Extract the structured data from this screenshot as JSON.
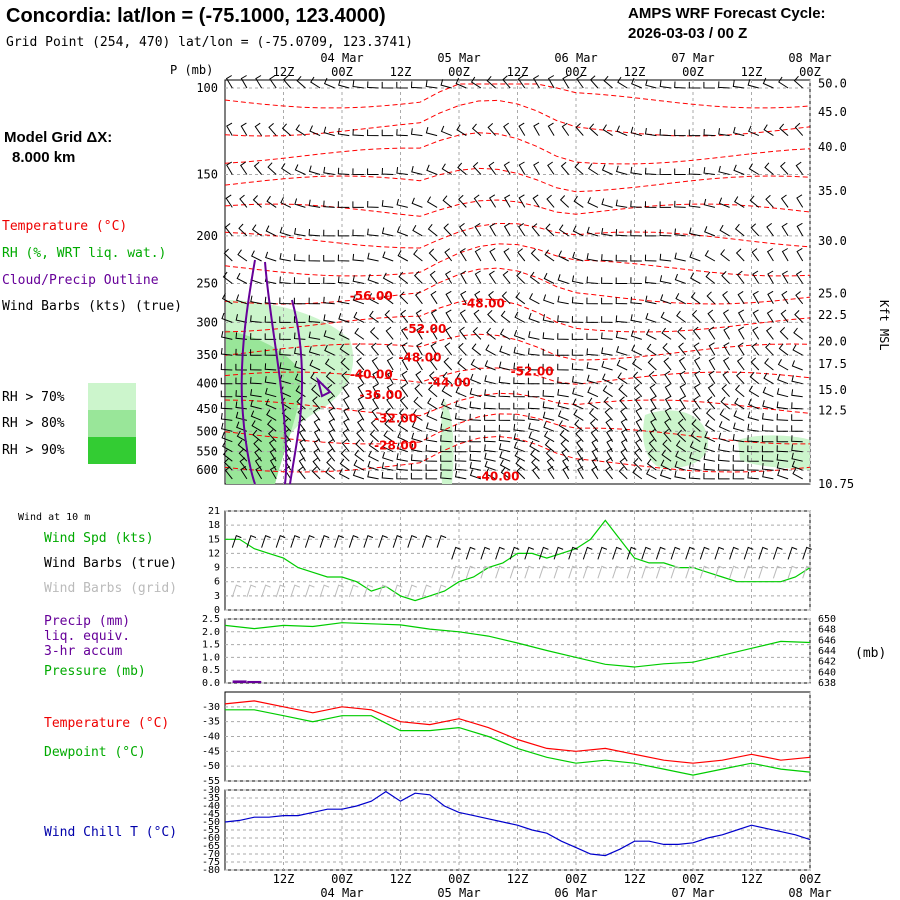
{
  "header": {
    "title": "Concordia:  lat/lon = (-75.1000, 123.4000)",
    "grid_point": "Grid Point (254, 470) lat/lon = (-75.0709, 123.3741)",
    "cycle_label": "AMPS WRF Forecast Cycle:",
    "cycle_value": "2026-03-03 / 00  Z",
    "model_grid_label": "Model Grid ΔX:",
    "model_grid_value": "8.000 km"
  },
  "colors": {
    "temperature": "#ff0000",
    "rh_line": "#00cc00",
    "cloud": "#660099",
    "wind_chill": "#0000cc",
    "rh70": "#ccf5cc",
    "rh80": "#99e699",
    "rh90": "#33cc33",
    "grid": "#aaaaaa"
  },
  "time_axis": {
    "ticks": [
      "12Z",
      "00Z",
      "12Z",
      "00Z",
      "12Z",
      "00Z",
      "12Z",
      "00Z",
      "12Z",
      "00Z"
    ],
    "dates": [
      "04 Mar",
      "05 Mar",
      "06 Mar",
      "07 Mar",
      "08 Mar"
    ],
    "hours_span": [
      0,
      120
    ]
  },
  "chart_data": [
    {
      "type": "heatmap",
      "title": "Cross-section",
      "ylabel": "P (mb)",
      "y2label": "Kft MSL",
      "pressure_ticks": [
        "100",
        "150",
        "200",
        "250",
        "300",
        "350",
        "400",
        "450",
        "500",
        "550",
        "600"
      ],
      "kft_ticks": [
        "50.0",
        "45.0",
        "40.0",
        "35.0",
        "30.0",
        "25.0",
        "22.5",
        "20.0",
        "17.5",
        "15.0",
        "12.5",
        "10.75"
      ],
      "legend": {
        "temperature": "Temperature (°C)",
        "rh": "RH (%, WRT liq. wat.)",
        "cloud": "Cloud/Precip Outline",
        "barbs": "Wind Barbs (kts) (true)",
        "rh70": "RH > 70%",
        "rh80": "RH > 80%",
        "rh90": "RH > 90%"
      },
      "isotherm_labels": [
        {
          "text": "-56.00",
          "hour": 30,
          "p": 270
        },
        {
          "text": "-48.00",
          "hour": 53,
          "p": 280
        },
        {
          "text": "-52.00",
          "hour": 41,
          "p": 315
        },
        {
          "text": "-48.00",
          "hour": 40,
          "p": 360
        },
        {
          "text": "-52.00",
          "hour": 63,
          "p": 385
        },
        {
          "text": "-40.00",
          "hour": 30,
          "p": 390
        },
        {
          "text": "-44.00",
          "hour": 46,
          "p": 405
        },
        {
          "text": "-36.00",
          "hour": 32,
          "p": 430
        },
        {
          "text": "-32.00",
          "hour": 35,
          "p": 480
        },
        {
          "text": "-28.00",
          "hour": 35,
          "p": 545
        },
        {
          "text": "-40.00",
          "hour": 56,
          "p": 630
        }
      ]
    },
    {
      "type": "line",
      "title": "Wind at 10 m",
      "legend": [
        "Wind Spd (kts)",
        "Wind Barbs (true)",
        "Wind Barbs (grid)"
      ],
      "yticks": [
        "21",
        "18",
        "15",
        "12",
        "9",
        "6",
        "3",
        "0"
      ],
      "ylim": [
        0,
        21
      ],
      "series": [
        {
          "name": "Wind Spd (kts)",
          "x": [
            0,
            3,
            6,
            9,
            12,
            15,
            18,
            21,
            24,
            27,
            30,
            33,
            36,
            39,
            42,
            45,
            48,
            51,
            54,
            57,
            60,
            63,
            66,
            69,
            72,
            75,
            78,
            81,
            84,
            87,
            90,
            93,
            96,
            99,
            102,
            105,
            108,
            111,
            114,
            117,
            120
          ],
          "values": [
            15,
            15,
            13,
            12,
            11,
            9,
            8,
            7,
            7,
            6,
            4,
            5,
            3,
            2,
            3,
            4,
            6,
            7,
            9,
            10,
            12,
            12,
            11,
            12,
            13,
            15,
            19,
            15,
            11,
            10,
            10,
            9,
            9,
            8,
            7,
            6,
            6,
            6,
            6,
            7,
            9
          ]
        }
      ]
    },
    {
      "type": "line",
      "title": "Precip / Pressure",
      "legend": [
        "Precip (mm)",
        "liq. equiv.",
        "3-hr accum",
        "Pressure (mb)"
      ],
      "yticks": [
        "2.5",
        "2.0",
        "1.5",
        "1.0",
        "0.5",
        "0.0"
      ],
      "y2ticks": [
        "650",
        "648",
        "646",
        "644",
        "642",
        "640",
        "638"
      ],
      "y2unit": "(mb)",
      "ylim": [
        0,
        2.5
      ],
      "y2lim": [
        638,
        650
      ],
      "precip": {
        "x": [
          3,
          6
        ],
        "values": [
          0.1,
          0.08
        ]
      },
      "series": [
        {
          "name": "Pressure (mb)",
          "x": [
            0,
            6,
            12,
            18,
            24,
            30,
            36,
            42,
            48,
            54,
            60,
            66,
            72,
            78,
            84,
            90,
            96,
            102,
            108,
            114,
            120
          ],
          "values": [
            648.8,
            648.2,
            648.8,
            648.6,
            649.3,
            649.1,
            648.9,
            648.1,
            647.6,
            646.8,
            645.5,
            644.1,
            642.8,
            641.5,
            641.0,
            641.6,
            641.9,
            643.2,
            644.5,
            645.8,
            645.6
          ]
        }
      ]
    },
    {
      "type": "line",
      "title": "Temperature / Dewpoint",
      "legend": [
        "Temperature (°C)",
        "Dewpoint (°C)"
      ],
      "yticks": [
        "-30",
        "-35",
        "-40",
        "-45",
        "-50",
        "-55"
      ],
      "ylim": [
        -55,
        -25
      ],
      "series": [
        {
          "name": "Temperature (°C)",
          "x": [
            0,
            6,
            12,
            18,
            24,
            30,
            36,
            42,
            48,
            54,
            60,
            66,
            72,
            78,
            84,
            90,
            96,
            102,
            108,
            114,
            120
          ],
          "values": [
            -29,
            -28,
            -30,
            -32,
            -30,
            -31,
            -35,
            -36,
            -34,
            -37,
            -41,
            -44,
            -45,
            -44,
            -46,
            -48,
            -49,
            -48,
            -46,
            -48,
            -47
          ]
        },
        {
          "name": "Dewpoint (°C)",
          "x": [
            0,
            6,
            12,
            18,
            24,
            30,
            36,
            42,
            48,
            54,
            60,
            66,
            72,
            78,
            84,
            90,
            96,
            102,
            108,
            114,
            120
          ],
          "values": [
            -31,
            -31,
            -33,
            -35,
            -33,
            -33,
            -38,
            -38,
            -37,
            -40,
            -44,
            -47,
            -49,
            -48,
            -49,
            -51,
            -53,
            -51,
            -49,
            -51,
            -52
          ]
        }
      ]
    },
    {
      "type": "line",
      "title": "Wind Chill",
      "legend": [
        "Wind Chill T (°C)"
      ],
      "yticks": [
        "-30",
        "-35",
        "-40",
        "-45",
        "-50",
        "-55",
        "-60",
        "-65",
        "-70",
        "-75",
        "-80"
      ],
      "ylim": [
        -80,
        -30
      ],
      "series": [
        {
          "name": "Wind Chill T (°C)",
          "x": [
            0,
            3,
            6,
            9,
            12,
            15,
            18,
            21,
            24,
            27,
            30,
            33,
            36,
            39,
            42,
            45,
            48,
            51,
            54,
            57,
            60,
            63,
            66,
            69,
            72,
            75,
            78,
            81,
            84,
            87,
            90,
            93,
            96,
            99,
            102,
            105,
            108,
            111,
            114,
            117,
            120
          ],
          "values": [
            -50,
            -49,
            -47,
            -47,
            -46,
            -46,
            -44,
            -42,
            -42,
            -40,
            -37,
            -31,
            -37,
            -32,
            -33,
            -40,
            -44,
            -46,
            -48,
            -50,
            -52,
            -55,
            -57,
            -62,
            -66,
            -70,
            -71,
            -67,
            -62,
            -62,
            -64,
            -64,
            -63,
            -60,
            -58,
            -55,
            -52,
            -54,
            -56,
            -58,
            -61
          ]
        }
      ]
    }
  ],
  "lower_labels": {
    "wind_title": "Wind at 10 m"
  }
}
